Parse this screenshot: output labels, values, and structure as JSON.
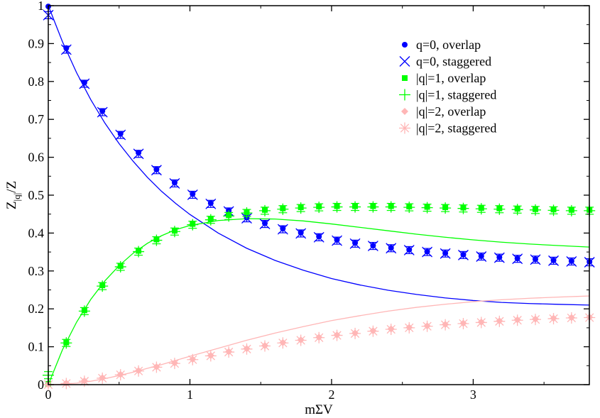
{
  "chart_data": {
    "type": "scatter",
    "xlabel": "mΣV",
    "ylabel": "Z|q|/Z",
    "ylabel_main": "Z",
    "ylabel_sub": "|q|",
    "ylabel_tail": "/Z",
    "xlim": [
      0,
      3.82
    ],
    "ylim": [
      0,
      1
    ],
    "xticks": [
      0,
      1,
      2,
      3
    ],
    "xtick_labels": [
      "0",
      "1",
      "2",
      "3"
    ],
    "yticks": [
      0,
      0.1,
      0.2,
      0.3,
      0.4,
      0.5,
      0.6,
      0.7,
      0.8,
      0.9,
      1
    ],
    "ytick_labels": [
      "0",
      "0.1",
      "0.2",
      "0.3",
      "0.4",
      "0.5",
      "0.6",
      "0.7",
      "0.8",
      "0.9",
      "1"
    ],
    "grid": false,
    "legend_position": "top-right",
    "x": [
      0,
      0.127,
      0.255,
      0.382,
      0.51,
      0.637,
      0.764,
      0.892,
      1.019,
      1.147,
      1.274,
      1.401,
      1.529,
      1.656,
      1.783,
      1.911,
      2.038,
      2.166,
      2.293,
      2.42,
      2.548,
      2.675,
      2.803,
      2.93,
      3.057,
      3.185,
      3.312,
      3.439,
      3.567,
      3.694,
      3.821
    ],
    "series": [
      {
        "name": "q=0, overlap",
        "marker": "circle",
        "color": "#0000ff",
        "values": [
          0.998,
          0.888,
          0.797,
          0.722,
          0.662,
          0.612,
          0.568,
          0.533,
          0.503,
          0.479,
          0.459,
          0.441,
          0.426,
          0.412,
          0.401,
          0.391,
          0.382,
          0.374,
          0.367,
          0.361,
          0.356,
          0.351,
          0.347,
          0.343,
          0.339,
          0.336,
          0.333,
          0.331,
          0.328,
          0.326,
          0.324
        ]
      },
      {
        "name": "q=0, staggered",
        "marker": "x",
        "color": "#0000ff",
        "values": [
          0.975,
          0.884,
          0.794,
          0.719,
          0.659,
          0.609,
          0.566,
          0.531,
          0.501,
          0.477,
          0.457,
          0.439,
          0.424,
          0.41,
          0.399,
          0.389,
          0.38,
          0.372,
          0.366,
          0.36,
          0.355,
          0.35,
          0.346,
          0.342,
          0.338,
          0.335,
          0.332,
          0.33,
          0.327,
          0.325,
          0.323
        ]
      },
      {
        "name": "|q|=1, overlap",
        "marker": "square",
        "color": "#00ff00",
        "values": [
          0.002,
          0.111,
          0.196,
          0.262,
          0.313,
          0.353,
          0.383,
          0.406,
          0.424,
          0.437,
          0.447,
          0.455,
          0.461,
          0.465,
          0.468,
          0.47,
          0.471,
          0.471,
          0.471,
          0.471,
          0.47,
          0.469,
          0.468,
          0.467,
          0.466,
          0.465,
          0.464,
          0.463,
          0.462,
          0.461,
          0.461
        ]
      },
      {
        "name": "|q|=1, staggered",
        "marker": "plus",
        "color": "#00ff00",
        "values": [
          0.025,
          0.11,
          0.194,
          0.26,
          0.311,
          0.351,
          0.381,
          0.404,
          0.422,
          0.435,
          0.445,
          0.453,
          0.459,
          0.463,
          0.466,
          0.468,
          0.469,
          0.469,
          0.469,
          0.469,
          0.468,
          0.467,
          0.466,
          0.465,
          0.464,
          0.463,
          0.462,
          0.461,
          0.46,
          0.459,
          0.459
        ]
      },
      {
        "name": "|q|=2, overlap",
        "marker": "diamond",
        "color": "#ffb6b6",
        "values": [
          0.0,
          0.004,
          0.01,
          0.018,
          0.027,
          0.037,
          0.047,
          0.057,
          0.067,
          0.077,
          0.087,
          0.095,
          0.103,
          0.111,
          0.118,
          0.125,
          0.131,
          0.136,
          0.142,
          0.147,
          0.151,
          0.155,
          0.159,
          0.162,
          0.165,
          0.168,
          0.171,
          0.173,
          0.175,
          0.177,
          0.178
        ]
      },
      {
        "name": "|q|=2, staggered",
        "marker": "asterisk",
        "color": "#ffb6b6",
        "values": [
          0.0,
          0.003,
          0.009,
          0.017,
          0.026,
          0.036,
          0.046,
          0.056,
          0.066,
          0.076,
          0.086,
          0.094,
          0.102,
          0.11,
          0.117,
          0.124,
          0.13,
          0.135,
          0.141,
          0.146,
          0.15,
          0.154,
          0.158,
          0.161,
          0.164,
          0.167,
          0.17,
          0.172,
          0.174,
          0.176,
          0.177
        ]
      }
    ],
    "curves": [
      {
        "color": "#0000ff",
        "x": [
          0,
          0.1,
          0.2,
          0.3,
          0.4,
          0.5,
          0.6,
          0.7,
          0.8,
          0.9,
          1.0,
          1.2,
          1.4,
          1.6,
          1.8,
          2.0,
          2.2,
          2.4,
          2.6,
          2.8,
          3.0,
          3.2,
          3.4,
          3.6,
          3.82
        ],
        "y": [
          1.0,
          0.905,
          0.823,
          0.752,
          0.69,
          0.636,
          0.589,
          0.547,
          0.51,
          0.478,
          0.449,
          0.4,
          0.36,
          0.328,
          0.302,
          0.28,
          0.263,
          0.249,
          0.238,
          0.229,
          0.222,
          0.217,
          0.214,
          0.212,
          0.21
        ]
      },
      {
        "color": "#00ff00",
        "x": [
          0,
          0.1,
          0.2,
          0.3,
          0.4,
          0.5,
          0.6,
          0.7,
          0.8,
          0.9,
          1.0,
          1.2,
          1.4,
          1.6,
          1.8,
          2.0,
          2.2,
          2.4,
          2.6,
          2.8,
          3.0,
          3.2,
          3.4,
          3.6,
          3.82
        ],
        "y": [
          0.0,
          0.092,
          0.165,
          0.225,
          0.274,
          0.314,
          0.347,
          0.373,
          0.393,
          0.409,
          0.42,
          0.433,
          0.438,
          0.437,
          0.432,
          0.424,
          0.415,
          0.406,
          0.397,
          0.389,
          0.382,
          0.376,
          0.371,
          0.367,
          0.363
        ]
      },
      {
        "color": "#ffb6b6",
        "x": [
          0,
          0.1,
          0.2,
          0.3,
          0.4,
          0.5,
          0.6,
          0.7,
          0.8,
          0.9,
          1.0,
          1.2,
          1.4,
          1.6,
          1.8,
          2.0,
          2.2,
          2.4,
          2.6,
          2.8,
          3.0,
          3.2,
          3.4,
          3.6,
          3.82
        ],
        "y": [
          0.0,
          0.001,
          0.004,
          0.009,
          0.016,
          0.024,
          0.033,
          0.043,
          0.053,
          0.064,
          0.075,
          0.096,
          0.117,
          0.136,
          0.153,
          0.169,
          0.182,
          0.194,
          0.204,
          0.212,
          0.219,
          0.224,
          0.228,
          0.231,
          0.234
        ]
      }
    ]
  }
}
